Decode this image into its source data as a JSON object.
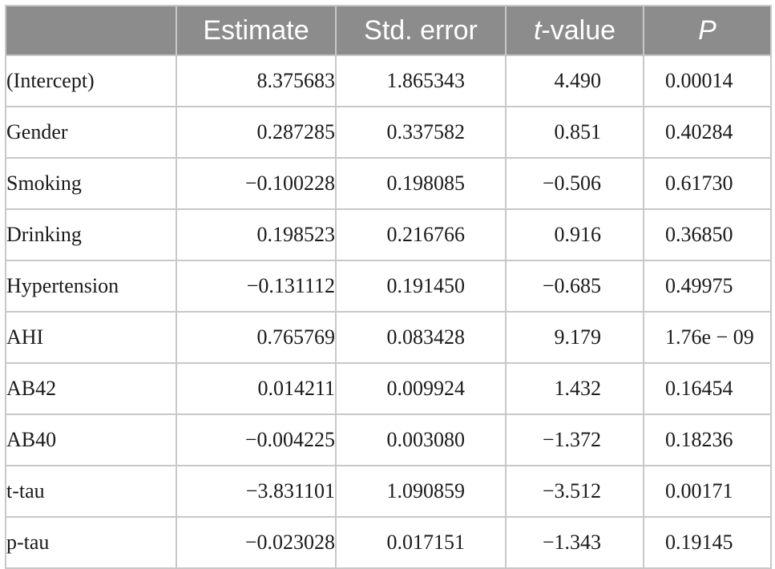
{
  "table": {
    "headers": {
      "term": "",
      "estimate": "Estimate",
      "std_error": "Std. error",
      "t_value_var": "t",
      "t_value_rest": "-value",
      "p": "P"
    },
    "rows": [
      {
        "term": "(Intercept)",
        "estimate": "8.375683",
        "std_error": "1.865343",
        "t_value": "4.490",
        "p": "0.00014"
      },
      {
        "term": "Gender",
        "estimate": "0.287285",
        "std_error": "0.337582",
        "t_value": "0.851",
        "p": "0.40284"
      },
      {
        "term": "Smoking",
        "estimate": "−0.100228",
        "std_error": "0.198085",
        "t_value": "−0.506",
        "p": "0.61730"
      },
      {
        "term": "Drinking",
        "estimate": "0.198523",
        "std_error": "0.216766",
        "t_value": "0.916",
        "p": "0.36850"
      },
      {
        "term": "Hypertension",
        "estimate": "−0.131112",
        "std_error": "0.191450",
        "t_value": "−0.685",
        "p": "0.49975"
      },
      {
        "term": "AHI",
        "estimate": "0.765769",
        "std_error": "0.083428",
        "t_value": "9.179",
        "p": "1.76e − 09"
      },
      {
        "term": "AB42",
        "estimate": "0.014211",
        "std_error": "0.009924",
        "t_value": "1.432",
        "p": "0.16454"
      },
      {
        "term": "AB40",
        "estimate": "−0.004225",
        "std_error": "0.003080",
        "t_value": "−1.372",
        "p": "0.18236"
      },
      {
        "term": "t-tau",
        "estimate": "−3.831101",
        "std_error": "1.090859",
        "t_value": "−3.512",
        "p": "0.00171"
      },
      {
        "term": "p-tau",
        "estimate": "−0.023028",
        "std_error": "0.017151",
        "t_value": "−1.343",
        "p": "0.19145"
      }
    ],
    "colors": {
      "header_background": "#8c8c8c",
      "header_text": "#ffffff",
      "grid": "#c8c8c8"
    }
  }
}
